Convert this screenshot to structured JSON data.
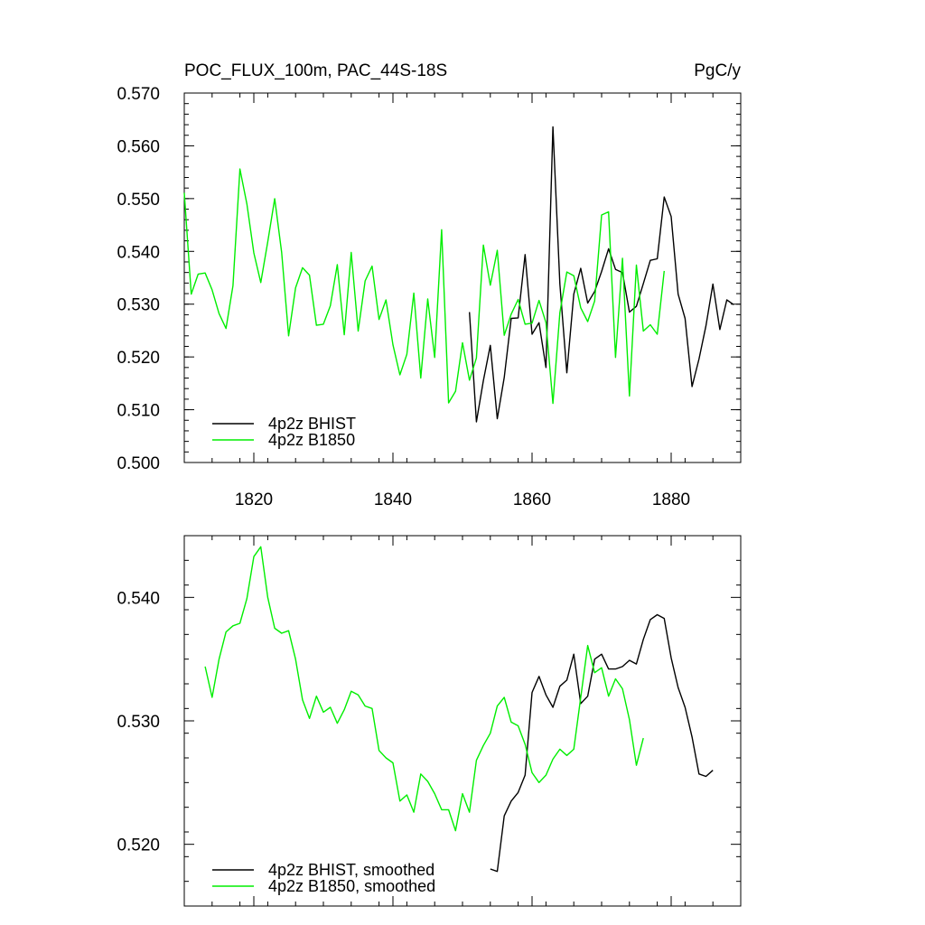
{
  "colors": {
    "bhist": "#000000",
    "b1850": "#00ee00"
  },
  "chart_data": [
    {
      "type": "line",
      "title": "POC_FLUX_100m, PAC_44S-18S",
      "units": "PgC/y",
      "xlim": [
        1810,
        1890
      ],
      "ylim": [
        0.5,
        0.57
      ],
      "yticks": [
        0.5,
        0.51,
        0.52,
        0.53,
        0.54,
        0.55,
        0.56,
        0.57
      ],
      "ytick_labels": [
        "0.500",
        "0.510",
        "0.520",
        "0.530",
        "0.540",
        "0.550",
        "0.560",
        "0.570"
      ],
      "xticks": [
        1820,
        1840,
        1860,
        1880
      ],
      "xtick_labels": [
        "1820",
        "1840",
        "1860",
        "1880"
      ],
      "legend": "bottom-left",
      "series": [
        {
          "name": "4p2z BHIST",
          "color": "#000000",
          "x": [
            1851,
            1852,
            1853,
            1854,
            1855,
            1856,
            1857,
            1858,
            1859,
            1860,
            1861,
            1862,
            1863,
            1864,
            1865,
            1866,
            1867,
            1868,
            1869,
            1870,
            1871,
            1872,
            1873,
            1874,
            1875,
            1876,
            1877,
            1878,
            1879,
            1880,
            1881,
            1882,
            1883,
            1884,
            1885,
            1886,
            1887,
            1888,
            1889
          ],
          "y": [
            0.5285,
            0.5077,
            0.5155,
            0.5222,
            0.5083,
            0.5161,
            0.5273,
            0.5274,
            0.5394,
            0.5243,
            0.5265,
            0.518,
            0.5636,
            0.5338,
            0.517,
            0.5319,
            0.5368,
            0.5302,
            0.5324,
            0.5362,
            0.5405,
            0.5366,
            0.536,
            0.5285,
            0.5296,
            0.5339,
            0.5383,
            0.5386,
            0.5503,
            0.5466,
            0.5319,
            0.5273,
            0.5144,
            0.5196,
            0.5259,
            0.5338,
            0.5252,
            0.5308,
            0.5299
          ]
        },
        {
          "name": "4p2z B1850",
          "color": "#00ee00",
          "x": [
            1810,
            1811,
            1812,
            1813,
            1814,
            1815,
            1816,
            1817,
            1818,
            1819,
            1820,
            1821,
            1822,
            1823,
            1824,
            1825,
            1826,
            1827,
            1828,
            1829,
            1830,
            1831,
            1832,
            1833,
            1834,
            1835,
            1836,
            1837,
            1838,
            1839,
            1840,
            1841,
            1842,
            1843,
            1844,
            1845,
            1846,
            1847,
            1848,
            1849,
            1850,
            1851,
            1852,
            1853,
            1854,
            1855,
            1856,
            1857,
            1858,
            1859,
            1860,
            1861,
            1862,
            1863,
            1864,
            1865,
            1866,
            1867,
            1868,
            1869,
            1870,
            1871,
            1872,
            1873,
            1874,
            1875,
            1876,
            1877,
            1878,
            1879
          ],
          "y": [
            0.5511,
            0.5319,
            0.5357,
            0.5359,
            0.5327,
            0.5282,
            0.5254,
            0.5335,
            0.5556,
            0.549,
            0.5397,
            0.5341,
            0.5418,
            0.55,
            0.5398,
            0.524,
            0.5331,
            0.5369,
            0.5355,
            0.526,
            0.5262,
            0.5297,
            0.5375,
            0.5242,
            0.5398,
            0.5249,
            0.5344,
            0.5372,
            0.5271,
            0.5308,
            0.5223,
            0.5166,
            0.5205,
            0.5321,
            0.516,
            0.531,
            0.5199,
            0.5441,
            0.5113,
            0.5135,
            0.5227,
            0.5156,
            0.5198,
            0.5412,
            0.5336,
            0.5402,
            0.5241,
            0.5281,
            0.5309,
            0.5262,
            0.5264,
            0.5307,
            0.5265,
            0.5112,
            0.5284,
            0.5361,
            0.5354,
            0.5293,
            0.5267,
            0.5306,
            0.5469,
            0.5475,
            0.5199,
            0.5387,
            0.5126,
            0.5374,
            0.5249,
            0.5261,
            0.5243,
            0.5363
          ]
        }
      ]
    },
    {
      "type": "line",
      "xlim": [
        1810,
        1890
      ],
      "ylim": [
        0.515,
        0.545
      ],
      "yticks": [
        0.52,
        0.53,
        0.54
      ],
      "ytick_labels": [
        "0.520",
        "0.530",
        "0.540"
      ],
      "xticks": [
        1820,
        1840,
        1860,
        1880
      ],
      "legend": "bottom-left",
      "series": [
        {
          "name": "4p2z BHIST, smoothed",
          "color": "#000000",
          "x": [
            1854,
            1855,
            1856,
            1857,
            1858,
            1859,
            1860,
            1861,
            1862,
            1863,
            1864,
            1865,
            1866,
            1867,
            1868,
            1869,
            1870,
            1871,
            1872,
            1873,
            1874,
            1875,
            1876,
            1877,
            1878,
            1879,
            1880,
            1881,
            1882,
            1883,
            1884,
            1885,
            1886
          ],
          "y": [
            0.518,
            0.5178,
            0.5223,
            0.5235,
            0.5242,
            0.5256,
            0.5323,
            0.5336,
            0.5321,
            0.5311,
            0.5328,
            0.5333,
            0.5354,
            0.5314,
            0.532,
            0.535,
            0.5354,
            0.5342,
            0.5342,
            0.5344,
            0.5349,
            0.5346,
            0.5366,
            0.5382,
            0.5386,
            0.5383,
            0.5351,
            0.5327,
            0.5311,
            0.5287,
            0.5257,
            0.5255,
            0.526
          ]
        },
        {
          "name": "4p2z B1850, smoothed",
          "color": "#00ee00",
          "x": [
            1813,
            1814,
            1815,
            1816,
            1817,
            1818,
            1819,
            1820,
            1821,
            1822,
            1823,
            1824,
            1825,
            1826,
            1827,
            1828,
            1829,
            1830,
            1831,
            1832,
            1833,
            1834,
            1835,
            1836,
            1837,
            1838,
            1839,
            1840,
            1841,
            1842,
            1843,
            1844,
            1845,
            1846,
            1847,
            1848,
            1849,
            1850,
            1851,
            1852,
            1853,
            1854,
            1855,
            1856,
            1857,
            1858,
            1859,
            1860,
            1861,
            1862,
            1863,
            1864,
            1865,
            1866,
            1867,
            1868,
            1869,
            1870,
            1871,
            1872,
            1873,
            1874,
            1875,
            1876
          ],
          "y": [
            0.5344,
            0.5319,
            0.535,
            0.5372,
            0.5377,
            0.5379,
            0.5399,
            0.5433,
            0.5441,
            0.54,
            0.5375,
            0.5371,
            0.5373,
            0.535,
            0.5317,
            0.5302,
            0.532,
            0.5307,
            0.5311,
            0.5298,
            0.5309,
            0.5324,
            0.5321,
            0.5312,
            0.531,
            0.5276,
            0.527,
            0.5266,
            0.5235,
            0.524,
            0.5226,
            0.5257,
            0.5251,
            0.5241,
            0.5228,
            0.5228,
            0.5211,
            0.5241,
            0.5226,
            0.5268,
            0.528,
            0.529,
            0.5312,
            0.5319,
            0.5299,
            0.5296,
            0.5281,
            0.5258,
            0.525,
            0.5256,
            0.5269,
            0.5277,
            0.5272,
            0.5277,
            0.5319,
            0.5361,
            0.5339,
            0.5343,
            0.532,
            0.5334,
            0.5326,
            0.5301,
            0.5264,
            0.5286
          ]
        }
      ]
    }
  ]
}
